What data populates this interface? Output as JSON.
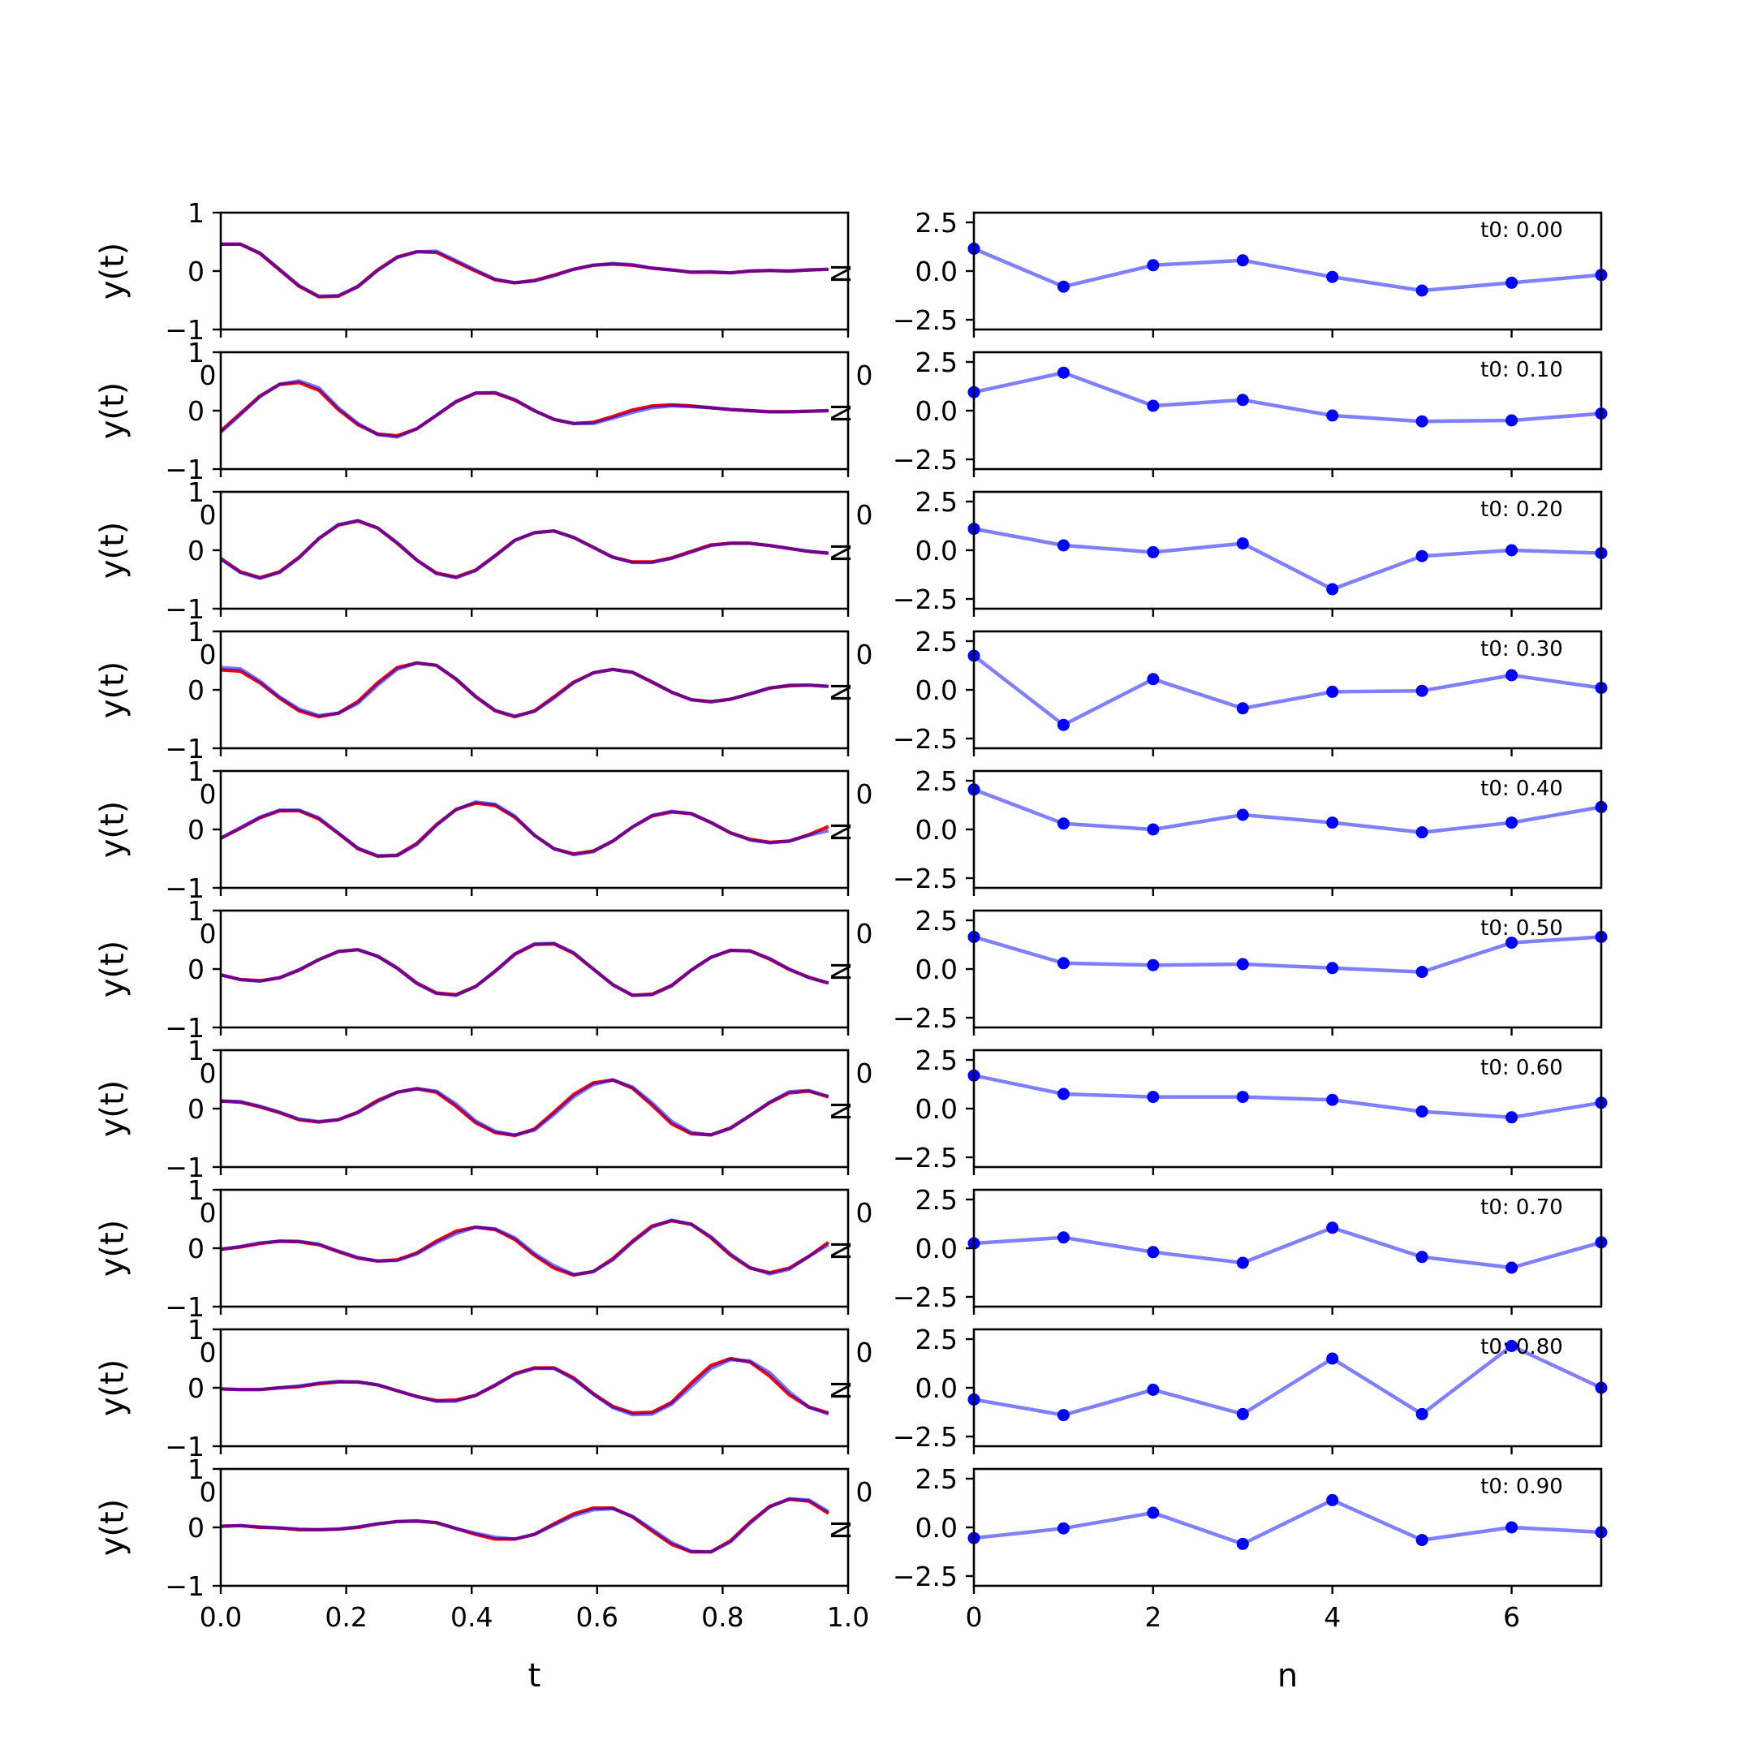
{
  "colors": {
    "left_line_red": "#ff0000",
    "left_line_blue": "#0000ff",
    "right_line": "#8080ff",
    "right_marker": "#0000ff",
    "frame": "#000000"
  },
  "chart_data": [
    {
      "type": "line",
      "panel": "left",
      "xlabel": "t",
      "ylabel": "y(t)",
      "xlim": [
        0.0,
        1.0
      ],
      "ylim": [
        -1,
        1
      ],
      "yticks": [
        "1",
        "0",
        "−1"
      ],
      "xticks": [
        "0.0",
        "0.2",
        "0.4",
        "0.6",
        "0.8",
        "1.0"
      ],
      "clipped_tick_glyph": "0",
      "right_edge_glyph": "N",
      "x": [
        0.0,
        0.03125,
        0.0625,
        0.09375,
        0.125,
        0.15625,
        0.1875,
        0.21875,
        0.25,
        0.28125,
        0.3125,
        0.34375,
        0.375,
        0.40625,
        0.4375,
        0.46875,
        0.5,
        0.53125,
        0.5625,
        0.59375,
        0.625,
        0.65625,
        0.6875,
        0.71875,
        0.75,
        0.78125,
        0.8125,
        0.84375,
        0.875,
        0.90625,
        0.9375,
        0.96875
      ],
      "rows": [
        {
          "red": [
            0.46,
            0.46,
            0.3,
            0.02,
            -0.26,
            -0.44,
            -0.43,
            -0.26,
            0.02,
            0.24,
            0.33,
            0.32,
            0.16,
            0.0,
            -0.15,
            -0.2,
            -0.16,
            -0.07,
            0.03,
            0.1,
            0.12,
            0.1,
            0.05,
            0.02,
            -0.02,
            -0.02,
            -0.03,
            0.0,
            0.01,
            0.0,
            0.02,
            0.03
          ],
          "blue": [
            0.46,
            0.46,
            0.31,
            0.03,
            -0.25,
            -0.43,
            -0.42,
            -0.27,
            0.01,
            0.23,
            0.33,
            0.34,
            0.18,
            0.02,
            -0.14,
            -0.2,
            -0.17,
            -0.08,
            0.03,
            0.1,
            0.13,
            0.11,
            0.05,
            0.02,
            -0.02,
            -0.01,
            -0.03,
            0.0,
            0.01,
            0.0,
            0.02,
            0.03
          ]
        },
        {
          "red": [
            -0.35,
            -0.05,
            0.25,
            0.45,
            0.48,
            0.35,
            0.02,
            -0.24,
            -0.4,
            -0.43,
            -0.31,
            -0.08,
            0.15,
            0.3,
            0.3,
            0.18,
            0.0,
            -0.15,
            -0.22,
            -0.2,
            -0.1,
            0.01,
            0.08,
            0.1,
            0.08,
            0.05,
            0.02,
            0.0,
            -0.02,
            -0.02,
            -0.01,
            0.0
          ],
          "blue": [
            -0.37,
            -0.07,
            0.24,
            0.45,
            0.51,
            0.39,
            0.05,
            -0.22,
            -0.41,
            -0.45,
            -0.31,
            -0.08,
            0.16,
            0.3,
            0.31,
            0.19,
            0.0,
            -0.15,
            -0.22,
            -0.22,
            -0.13,
            -0.03,
            0.05,
            0.08,
            0.07,
            0.05,
            0.02,
            0.0,
            -0.02,
            -0.02,
            -0.01,
            0.0
          ]
        },
        {
          "red": [
            -0.14,
            -0.37,
            -0.47,
            -0.37,
            -0.12,
            0.2,
            0.43,
            0.5,
            0.38,
            0.12,
            -0.17,
            -0.39,
            -0.46,
            -0.34,
            -0.09,
            0.17,
            0.3,
            0.33,
            0.22,
            0.05,
            -0.12,
            -0.2,
            -0.2,
            -0.13,
            -0.02,
            0.09,
            0.12,
            0.12,
            0.08,
            0.03,
            -0.02,
            -0.05
          ],
          "blue": [
            -0.15,
            -0.38,
            -0.48,
            -0.38,
            -0.13,
            0.2,
            0.44,
            0.51,
            0.38,
            0.13,
            -0.17,
            -0.4,
            -0.47,
            -0.35,
            -0.1,
            0.17,
            0.3,
            0.33,
            0.22,
            0.05,
            -0.12,
            -0.21,
            -0.21,
            -0.14,
            -0.03,
            0.08,
            0.12,
            0.12,
            0.08,
            0.03,
            -0.02,
            -0.05
          ]
        },
        {
          "red": [
            0.34,
            0.32,
            0.12,
            -0.14,
            -0.36,
            -0.46,
            -0.4,
            -0.2,
            0.12,
            0.38,
            0.46,
            0.42,
            0.18,
            -0.12,
            -0.36,
            -0.46,
            -0.36,
            -0.12,
            0.13,
            0.29,
            0.35,
            0.3,
            0.13,
            -0.04,
            -0.17,
            -0.2,
            -0.16,
            -0.07,
            0.03,
            0.07,
            0.08,
            0.06
          ],
          "blue": [
            0.38,
            0.36,
            0.15,
            -0.12,
            -0.33,
            -0.44,
            -0.4,
            -0.23,
            0.08,
            0.35,
            0.46,
            0.42,
            0.19,
            -0.11,
            -0.35,
            -0.45,
            -0.37,
            -0.14,
            0.12,
            0.29,
            0.35,
            0.3,
            0.14,
            -0.04,
            -0.17,
            -0.21,
            -0.16,
            -0.07,
            0.03,
            0.08,
            0.08,
            0.06
          ]
        },
        {
          "red": [
            -0.15,
            0.02,
            0.2,
            0.32,
            0.32,
            0.18,
            -0.07,
            -0.33,
            -0.46,
            -0.44,
            -0.24,
            0.08,
            0.34,
            0.45,
            0.41,
            0.21,
            -0.1,
            -0.33,
            -0.42,
            -0.37,
            -0.2,
            0.04,
            0.23,
            0.3,
            0.27,
            0.12,
            -0.06,
            -0.17,
            -0.22,
            -0.2,
            -0.09,
            0.05
          ],
          "blue": [
            -0.15,
            0.03,
            0.21,
            0.33,
            0.33,
            0.2,
            -0.06,
            -0.32,
            -0.45,
            -0.45,
            -0.26,
            0.07,
            0.34,
            0.47,
            0.43,
            0.23,
            -0.1,
            -0.33,
            -0.43,
            -0.38,
            -0.2,
            0.04,
            0.24,
            0.31,
            0.27,
            0.12,
            -0.06,
            -0.18,
            -0.23,
            -0.2,
            -0.1,
            -0.02
          ]
        },
        {
          "red": [
            -0.1,
            -0.18,
            -0.2,
            -0.15,
            -0.02,
            0.16,
            0.3,
            0.33,
            0.22,
            0.02,
            -0.24,
            -0.41,
            -0.44,
            -0.3,
            -0.04,
            0.25,
            0.42,
            0.43,
            0.27,
            0.0,
            -0.27,
            -0.45,
            -0.43,
            -0.28,
            -0.02,
            0.2,
            0.32,
            0.31,
            0.17,
            -0.01,
            -0.14,
            -0.24
          ],
          "blue": [
            -0.1,
            -0.18,
            -0.21,
            -0.15,
            -0.01,
            0.16,
            0.3,
            0.33,
            0.22,
            0.01,
            -0.25,
            -0.42,
            -0.45,
            -0.3,
            -0.03,
            0.26,
            0.43,
            0.44,
            0.28,
            0.0,
            -0.27,
            -0.45,
            -0.44,
            -0.29,
            -0.02,
            0.2,
            0.32,
            0.31,
            0.18,
            0.0,
            -0.15,
            -0.24
          ]
        },
        {
          "red": [
            0.13,
            0.11,
            0.03,
            -0.07,
            -0.19,
            -0.23,
            -0.19,
            -0.06,
            0.14,
            0.28,
            0.34,
            0.28,
            0.04,
            -0.24,
            -0.41,
            -0.46,
            -0.35,
            -0.06,
            0.24,
            0.44,
            0.49,
            0.35,
            0.06,
            -0.26,
            -0.43,
            -0.45,
            -0.33,
            -0.12,
            0.1,
            0.27,
            0.3,
            0.2
          ],
          "blue": [
            0.13,
            0.12,
            0.04,
            -0.06,
            -0.18,
            -0.22,
            -0.19,
            -0.07,
            0.12,
            0.28,
            0.34,
            0.3,
            0.08,
            -0.21,
            -0.39,
            -0.45,
            -0.37,
            -0.1,
            0.2,
            0.41,
            0.49,
            0.37,
            0.1,
            -0.22,
            -0.41,
            -0.45,
            -0.34,
            -0.12,
            0.11,
            0.29,
            0.31,
            0.21
          ]
        },
        {
          "red": [
            -0.02,
            0.02,
            0.08,
            0.12,
            0.11,
            0.06,
            -0.06,
            -0.17,
            -0.22,
            -0.2,
            -0.08,
            0.12,
            0.29,
            0.36,
            0.32,
            0.15,
            -0.12,
            -0.34,
            -0.46,
            -0.4,
            -0.18,
            0.12,
            0.38,
            0.47,
            0.41,
            0.18,
            -0.12,
            -0.34,
            -0.42,
            -0.34,
            -0.14,
            0.1
          ],
          "blue": [
            -0.02,
            0.03,
            0.09,
            0.12,
            0.12,
            0.07,
            -0.05,
            -0.16,
            -0.22,
            -0.21,
            -0.1,
            0.09,
            0.25,
            0.36,
            0.33,
            0.18,
            -0.09,
            -0.3,
            -0.45,
            -0.4,
            -0.2,
            0.1,
            0.36,
            0.48,
            0.41,
            0.2,
            -0.1,
            -0.33,
            -0.44,
            -0.36,
            -0.14,
            0.06
          ]
        },
        {
          "red": [
            -0.02,
            -0.03,
            -0.03,
            0.0,
            0.02,
            0.07,
            0.1,
            0.1,
            0.05,
            -0.05,
            -0.15,
            -0.22,
            -0.21,
            -0.13,
            0.04,
            0.24,
            0.34,
            0.34,
            0.17,
            -0.1,
            -0.32,
            -0.43,
            -0.42,
            -0.25,
            0.08,
            0.38,
            0.5,
            0.44,
            0.2,
            -0.12,
            -0.33,
            -0.43
          ],
          "blue": [
            -0.02,
            -0.03,
            -0.03,
            0.0,
            0.03,
            0.08,
            0.11,
            0.1,
            0.05,
            -0.05,
            -0.15,
            -0.23,
            -0.23,
            -0.13,
            0.05,
            0.23,
            0.33,
            0.33,
            0.15,
            -0.11,
            -0.34,
            -0.46,
            -0.45,
            -0.28,
            0.02,
            0.33,
            0.48,
            0.46,
            0.26,
            -0.07,
            -0.33,
            -0.45
          ]
        },
        {
          "red": [
            0.02,
            0.03,
            0.0,
            -0.01,
            -0.04,
            -0.04,
            -0.03,
            0.0,
            0.06,
            0.1,
            0.11,
            0.08,
            -0.02,
            -0.12,
            -0.2,
            -0.2,
            -0.12,
            0.06,
            0.23,
            0.33,
            0.33,
            0.18,
            -0.06,
            -0.29,
            -0.42,
            -0.42,
            -0.23,
            0.09,
            0.36,
            0.48,
            0.45,
            0.24
          ],
          "blue": [
            0.02,
            0.03,
            0.01,
            -0.01,
            -0.03,
            -0.04,
            -0.03,
            0.01,
            0.06,
            0.1,
            0.11,
            0.08,
            -0.02,
            -0.1,
            -0.17,
            -0.2,
            -0.12,
            0.04,
            0.2,
            0.3,
            0.32,
            0.19,
            -0.03,
            -0.26,
            -0.41,
            -0.42,
            -0.25,
            0.07,
            0.35,
            0.49,
            0.47,
            0.27
          ]
        }
      ]
    },
    {
      "type": "line",
      "panel": "right",
      "markers": true,
      "xlabel": "n",
      "xlim": [
        0,
        7
      ],
      "ylim": [
        -3,
        3
      ],
      "yticks": [
        "2.5",
        "0.0",
        "−2.5"
      ],
      "xticks": [
        "0",
        "2",
        "4",
        "6"
      ],
      "clipped_tick_glyph": "0",
      "x": [
        0,
        1,
        2,
        3,
        4,
        5,
        6,
        7
      ],
      "annotation_prefix": "t0: ",
      "rows": [
        {
          "annotation": "0.00",
          "values": [
            1.15,
            -0.8,
            0.3,
            0.55,
            -0.3,
            -1.0,
            -0.6,
            -0.2
          ]
        },
        {
          "annotation": "0.10",
          "values": [
            0.95,
            1.95,
            0.25,
            0.55,
            -0.25,
            -0.55,
            -0.5,
            -0.15
          ]
        },
        {
          "annotation": "0.20",
          "values": [
            1.1,
            0.25,
            -0.1,
            0.35,
            -2.0,
            -0.3,
            0.0,
            -0.15
          ]
        },
        {
          "annotation": "0.30",
          "values": [
            1.75,
            -1.8,
            0.55,
            -0.95,
            -0.1,
            -0.05,
            0.75,
            0.1
          ]
        },
        {
          "annotation": "0.40",
          "values": [
            2.05,
            0.3,
            0.0,
            0.75,
            0.35,
            -0.15,
            0.35,
            1.15
          ]
        },
        {
          "annotation": "0.50",
          "values": [
            1.65,
            0.3,
            0.2,
            0.25,
            0.05,
            -0.15,
            1.35,
            1.65
          ]
        },
        {
          "annotation": "0.60",
          "values": [
            1.7,
            0.75,
            0.6,
            0.6,
            0.45,
            -0.15,
            -0.45,
            0.3
          ]
        },
        {
          "annotation": "0.70",
          "values": [
            0.25,
            0.55,
            -0.2,
            -0.75,
            1.05,
            -0.45,
            -1.0,
            0.3
          ]
        },
        {
          "annotation": "0.80",
          "values": [
            -0.6,
            -1.4,
            -0.1,
            -1.35,
            1.5,
            -1.35,
            2.15,
            0.0
          ]
        },
        {
          "annotation": "0.90",
          "values": [
            -0.55,
            -0.05,
            0.75,
            -0.85,
            1.4,
            -0.65,
            0.0,
            -0.25
          ]
        }
      ]
    }
  ]
}
